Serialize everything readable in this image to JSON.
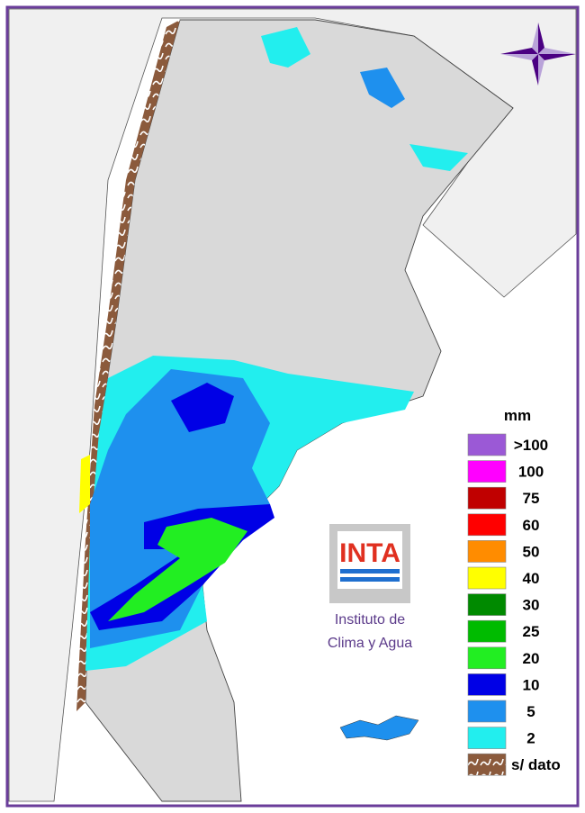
{
  "legend": {
    "unit": "mm",
    "items": [
      {
        "label": ">100",
        "color": "#9b59d6"
      },
      {
        "label": "100",
        "color": "#ff00ff"
      },
      {
        "label": "75",
        "color": "#c00000"
      },
      {
        "label": "60",
        "color": "#ff0000"
      },
      {
        "label": "50",
        "color": "#ff8c00"
      },
      {
        "label": "40",
        "color": "#ffff00"
      },
      {
        "label": "30",
        "color": "#008a00"
      },
      {
        "label": "25",
        "color": "#00bb00"
      },
      {
        "label": "20",
        "color": "#22ee22"
      },
      {
        "label": "10",
        "color": "#0000e6"
      },
      {
        "label": "5",
        "color": "#1e90ee"
      },
      {
        "label": "2",
        "color": "#22eeee"
      },
      {
        "label": "s/ dato",
        "color": "#8b5a3c"
      }
    ]
  },
  "logo": {
    "name": "INTA",
    "line1": "Instituto de",
    "line2": "Clima y Agua"
  }
}
